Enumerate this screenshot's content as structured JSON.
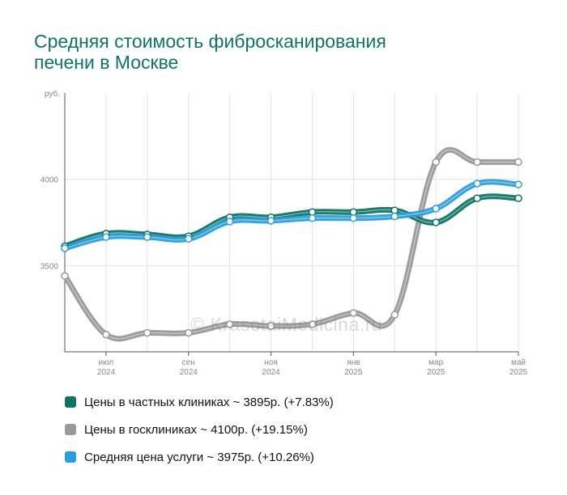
{
  "title": {
    "line1": "Средняя стоимость фибросканирования",
    "line2": "печени в Москве"
  },
  "watermark": "© KrasotaiMedicina.ru",
  "colors": {
    "private": "#0d7564",
    "public": "#999999",
    "average": "#2a9fe0",
    "title": "#0d7564"
  },
  "chart_data": {
    "type": "line",
    "y_unit": "руб.",
    "y_ticks": [
      3500,
      4000
    ],
    "ylim": [
      3000,
      4500
    ],
    "x_tick_labels": [
      {
        "month": "июл",
        "year": "2024",
        "index": 1
      },
      {
        "month": "сен",
        "year": "2024",
        "index": 3
      },
      {
        "month": "ноя",
        "year": "2024",
        "index": 5
      },
      {
        "month": "янв",
        "year": "2025",
        "index": 7
      },
      {
        "month": "мар",
        "year": "2025",
        "index": 9
      },
      {
        "month": "май",
        "year": "2025",
        "index": 11
      }
    ],
    "x": [
      "2024-06",
      "2024-07",
      "2024-08",
      "2024-09",
      "2024-10",
      "2024-11",
      "2024-12",
      "2025-01",
      "2025-02",
      "2025-03",
      "2025-04",
      "2025-05"
    ],
    "series": [
      {
        "key": "private",
        "name": "Цены в частных клиниках ~ 3895р. (+7.83%)",
        "values": [
          3612,
          3685,
          3680,
          3670,
          3780,
          3780,
          3810,
          3810,
          3820,
          3750,
          3890,
          3890
        ]
      },
      {
        "key": "public",
        "name": "Цены в госклиниках ~ 4100р. (+19.15%)",
        "values": [
          3440,
          3100,
          3110,
          3110,
          3160,
          3150,
          3160,
          3225,
          3215,
          4100,
          4100,
          4100
        ]
      },
      {
        "key": "average",
        "name": "Средняя цена услуги ~ 3975р. (+10.26%)",
        "values": [
          3600,
          3665,
          3665,
          3655,
          3755,
          3760,
          3775,
          3775,
          3785,
          3830,
          3975,
          3970
        ]
      }
    ],
    "grid": true,
    "legend_position": "bottom"
  }
}
